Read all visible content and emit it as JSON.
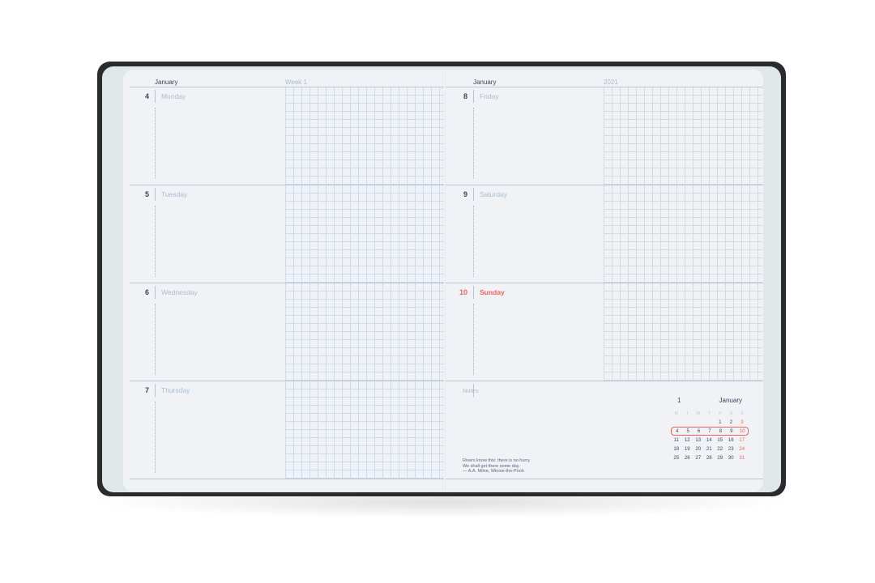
{
  "left_page": {
    "month": "January",
    "week": "Week 1",
    "days": [
      {
        "num": "4",
        "name": "Monday"
      },
      {
        "num": "5",
        "name": "Tuesday"
      },
      {
        "num": "6",
        "name": "Wednesday"
      },
      {
        "num": "7",
        "name": "Thursday"
      }
    ]
  },
  "right_page": {
    "month": "January",
    "year": "2021",
    "days": [
      {
        "num": "8",
        "name": "Friday"
      },
      {
        "num": "9",
        "name": "Saturday"
      },
      {
        "num": "10",
        "name": "Sunday",
        "highlight": true
      }
    ],
    "notes_label": "Notes",
    "quote": [
      "Rivers know this: there is no hurry.",
      "We shall get there some day.",
      "— A.A. Milne, Winnie-the-Pooh"
    ]
  },
  "mini_calendar": {
    "month_number": "1",
    "month": "January",
    "weekdays": [
      "M",
      "T",
      "W",
      "T",
      "F",
      "S",
      "S"
    ],
    "weeks": [
      [
        "",
        "",
        "",
        "",
        "1",
        "2",
        "3"
      ],
      [
        "4",
        "5",
        "6",
        "7",
        "8",
        "9",
        "10"
      ],
      [
        "11",
        "12",
        "13",
        "14",
        "15",
        "16",
        "17"
      ],
      [
        "18",
        "19",
        "20",
        "21",
        "22",
        "23",
        "24"
      ],
      [
        "25",
        "26",
        "27",
        "28",
        "29",
        "30",
        "31"
      ]
    ],
    "selected_week": 1
  },
  "colors": {
    "accent_red": "#f0625d",
    "ink": "#3a4560",
    "light_ink": "#a9bdd0",
    "cover": "#2a2b2e"
  }
}
